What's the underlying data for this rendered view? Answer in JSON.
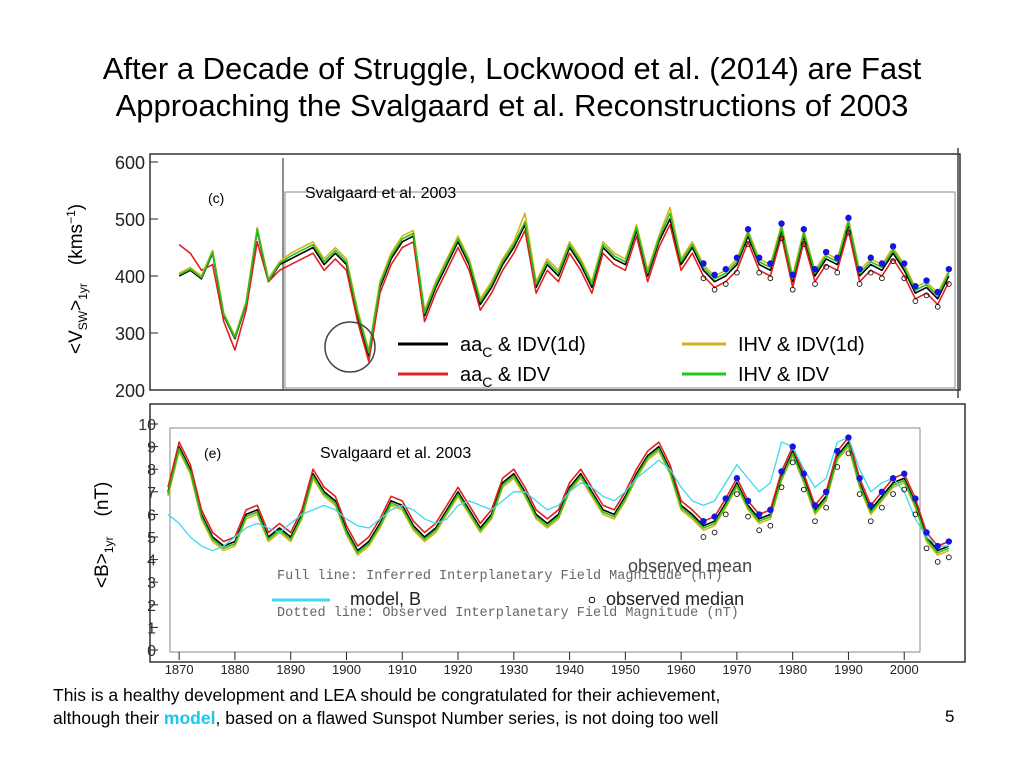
{
  "slide": {
    "title_line1": "After a Decade of Struggle, Lockwood et al. (2014) are Fast",
    "title_line2": "Approaching the Svalgaard et al. Reconstructions of 2003",
    "caption_part1": "This is a healthy development and LEA should be congratulated for their achievement,",
    "caption_part2": "although their ",
    "caption_highlight": "model",
    "caption_part3": ", based on a flawed Sunspot Number series, is not doing too well",
    "page_number": "5"
  },
  "colors": {
    "black": "#000000",
    "red": "#e02020",
    "yellow": "#d7b21c",
    "green": "#22c41e",
    "cyan": "#3fd8ee",
    "blue": "#1414e6",
    "accent": "#19c6ec"
  },
  "chart_data": [
    {
      "type": "line",
      "panel_label": "(c)",
      "ylabel_main": "(kms",
      "ylabel_sup": "−1",
      "ylabel_close": ")",
      "ylabel_var": "<V",
      "ylabel_sub": "SW",
      "ylabel_tail": ">",
      "ylabel_sub2": "1yr",
      "annotation": "Svalgaard et al. 2003",
      "ylim": [
        200,
        600
      ],
      "yticks": [
        "200",
        "300",
        "400",
        "500",
        "600"
      ],
      "legend": [
        {
          "name": "aa",
          "sub": "C",
          "suffix": " & IDV(1d)",
          "color": "#000000"
        },
        {
          "name": "aa",
          "sub": "C",
          "suffix": " & IDV",
          "color": "#e02020"
        },
        {
          "name": "IHV & IDV(1d)",
          "color": "#d7b21c"
        },
        {
          "name": "IHV & IDV",
          "color": "#22c41e"
        }
      ],
      "x": [
        1870,
        1872,
        1874,
        1876,
        1878,
        1880,
        1882,
        1884,
        1886,
        1888,
        1890,
        1892,
        1894,
        1896,
        1898,
        1900,
        1902,
        1904,
        1906,
        1908,
        1910,
        1912,
        1914,
        1916,
        1918,
        1920,
        1922,
        1924,
        1926,
        1928,
        1930,
        1932,
        1934,
        1936,
        1938,
        1940,
        1942,
        1944,
        1946,
        1948,
        1950,
        1952,
        1954,
        1956,
        1958,
        1960,
        1962,
        1964,
        1966,
        1968,
        1970,
        1972,
        1974,
        1976,
        1978,
        1980,
        1982,
        1984,
        1986,
        1988,
        1990,
        1992,
        1994,
        1996,
        1998,
        2000,
        2002,
        2004,
        2006,
        2008
      ],
      "series": [
        {
          "values": [
            400,
            410,
            395,
            440,
            330,
            290,
            350,
            480,
            390,
            420,
            430,
            440,
            450,
            420,
            440,
            420,
            330,
            260,
            380,
            430,
            460,
            470,
            330,
            380,
            420,
            460,
            420,
            350,
            380,
            420,
            450,
            490,
            380,
            420,
            400,
            450,
            420,
            380,
            450,
            430,
            420,
            480,
            400,
            460,
            500,
            420,
            450,
            410,
            390,
            400,
            420,
            470,
            420,
            410,
            480,
            390,
            470,
            400,
            430,
            420,
            490,
            400,
            420,
            410,
            440,
            410,
            370,
            380,
            360,
            400
          ]
        },
        {
          "values": [
            455,
            440,
            410,
            420,
            320,
            270,
            340,
            460,
            390,
            410,
            420,
            430,
            440,
            410,
            430,
            410,
            320,
            250,
            370,
            420,
            450,
            460,
            320,
            370,
            410,
            450,
            410,
            340,
            370,
            410,
            440,
            480,
            370,
            410,
            390,
            440,
            410,
            370,
            440,
            420,
            410,
            470,
            390,
            450,
            490,
            410,
            440,
            400,
            380,
            390,
            410,
            460,
            410,
            400,
            470,
            380,
            460,
            390,
            420,
            410,
            480,
            390,
            410,
            400,
            430,
            400,
            360,
            370,
            350,
            390
          ]
        },
        {
          "values": [
            405,
            415,
            400,
            445,
            335,
            295,
            355,
            485,
            395,
            425,
            440,
            450,
            460,
            430,
            450,
            430,
            340,
            270,
            390,
            440,
            470,
            480,
            340,
            390,
            430,
            470,
            430,
            360,
            390,
            430,
            460,
            510,
            390,
            430,
            410,
            460,
            430,
            390,
            460,
            440,
            430,
            490,
            410,
            470,
            520,
            430,
            460,
            420,
            400,
            410,
            430,
            480,
            430,
            420,
            490,
            400,
            480,
            410,
            440,
            430,
            500,
            410,
            430,
            420,
            450,
            420,
            380,
            390,
            370,
            410
          ]
        },
        {
          "values": [
            402,
            412,
            397,
            442,
            332,
            292,
            352,
            482,
            392,
            422,
            435,
            445,
            455,
            425,
            445,
            425,
            335,
            265,
            385,
            435,
            465,
            475,
            335,
            385,
            425,
            465,
            425,
            355,
            385,
            425,
            455,
            495,
            385,
            425,
            405,
            455,
            425,
            385,
            455,
            435,
            425,
            485,
            405,
            465,
            510,
            425,
            455,
            415,
            395,
            405,
            425,
            475,
            425,
            415,
            485,
            395,
            475,
            405,
            435,
            425,
            495,
            405,
            425,
            415,
            445,
            415,
            375,
            385,
            365,
            405
          ]
        }
      ]
    },
    {
      "type": "line",
      "panel_label": "(e)",
      "ylabel_main": "(nT)",
      "ylabel_var": "<B>",
      "ylabel_sub": "1yr",
      "annotation": "Svalgaard et al. 2003",
      "ylim": [
        0,
        10
      ],
      "yticks": [
        "0",
        "1",
        "2",
        "3",
        "4",
        "5",
        "6",
        "7",
        "8",
        "9",
        "10"
      ],
      "xticks": [
        "1870",
        "1880",
        "1890",
        "1900",
        "1910",
        "1920",
        "1930",
        "1940",
        "1950",
        "1960",
        "1970",
        "1980",
        "1990",
        "2000"
      ],
      "xlim": [
        1868,
        2010
      ],
      "note_full": "Full line: Inferred Interplanetary Field Magnitude (nT)",
      "note_dotted": "Dotted line: Observed Interplanetary Field Magnitude (nT)",
      "legend_model": "model, B",
      "legend_median": "observed median",
      "legend_mean": "observed mean",
      "x": [
        1868,
        1870,
        1872,
        1874,
        1876,
        1878,
        1880,
        1882,
        1884,
        1886,
        1888,
        1890,
        1892,
        1894,
        1896,
        1898,
        1900,
        1902,
        1904,
        1906,
        1908,
        1910,
        1912,
        1914,
        1916,
        1918,
        1920,
        1922,
        1924,
        1926,
        1928,
        1930,
        1932,
        1934,
        1936,
        1938,
        1940,
        1942,
        1944,
        1946,
        1948,
        1950,
        1952,
        1954,
        1956,
        1958,
        1960,
        1962,
        1964,
        1966,
        1968,
        1970,
        1972,
        1974,
        1976,
        1978,
        1980,
        1982,
        1984,
        1986,
        1988,
        1990,
        1992,
        1994,
        1996,
        1998,
        2000,
        2002,
        2004,
        2006,
        2008
      ],
      "series": [
        {
          "values": [
            7,
            9,
            8,
            6,
            5,
            4.6,
            4.8,
            6,
            6.2,
            5,
            5.4,
            5,
            6,
            7.8,
            7,
            6.6,
            5.3,
            4.4,
            4.8,
            5.6,
            6.6,
            6.4,
            5.5,
            5,
            5.4,
            6.2,
            7,
            6.2,
            5.4,
            6,
            7.4,
            7.8,
            7,
            6,
            5.6,
            6,
            7.2,
            7.8,
            7,
            6.2,
            6,
            6.8,
            7.8,
            8.6,
            9,
            8,
            6.4,
            6,
            5.5,
            5.7,
            6.5,
            7.4,
            6.4,
            5.8,
            6,
            7.7,
            8.8,
            7.6,
            6.2,
            6.8,
            8.6,
            9.2,
            7.4,
            6.2,
            6.8,
            7.4,
            7.6,
            6.5,
            5,
            4.4,
            4.6
          ]
        },
        {
          "values": [
            7.2,
            9.2,
            8.2,
            6.2,
            5.2,
            4.8,
            5,
            6.2,
            6.4,
            5.2,
            5.6,
            5.2,
            6.2,
            8,
            7.2,
            6.8,
            5.5,
            4.6,
            5,
            5.8,
            6.8,
            6.6,
            5.7,
            5.2,
            5.6,
            6.4,
            7.2,
            6.4,
            5.6,
            6.2,
            7.6,
            8,
            7.2,
            6.2,
            5.8,
            6.2,
            7.4,
            8,
            7.2,
            6.4,
            6.2,
            7,
            8,
            8.8,
            9.2,
            8.2,
            6.6,
            6.2,
            5.7,
            5.9,
            6.7,
            7.6,
            6.6,
            6,
            6.2,
            7.9,
            9,
            7.8,
            6.4,
            7,
            8.8,
            9.4,
            7.6,
            6.4,
            7,
            7.6,
            7.8,
            6.7,
            5.2,
            4.6,
            4.8
          ]
        },
        {
          "values": [
            6.8,
            8.8,
            7.8,
            5.8,
            4.8,
            4.4,
            4.6,
            5.8,
            6,
            4.8,
            5.2,
            4.8,
            5.8,
            7.6,
            6.8,
            6.4,
            5.1,
            4.2,
            4.6,
            5.4,
            6.4,
            6.2,
            5.3,
            4.8,
            5.2,
            6,
            6.8,
            6,
            5.2,
            5.8,
            7.2,
            7.6,
            6.8,
            5.8,
            5.4,
            5.8,
            7,
            7.6,
            6.8,
            6,
            5.8,
            6.6,
            7.6,
            8.4,
            8.8,
            7.8,
            6.2,
            5.8,
            5.3,
            5.5,
            6.3,
            7.2,
            6.2,
            5.6,
            5.8,
            7.5,
            8.6,
            7.4,
            6,
            6.6,
            8.4,
            9,
            7.2,
            6,
            6.6,
            7.2,
            7.4,
            6.3,
            4.8,
            4.2,
            4.4
          ]
        },
        {
          "values": [
            6.9,
            8.9,
            7.9,
            5.9,
            4.9,
            4.5,
            4.7,
            5.9,
            6.1,
            4.9,
            5.3,
            4.9,
            5.9,
            7.7,
            6.9,
            6.5,
            5.2,
            4.3,
            4.7,
            5.5,
            6.5,
            6.3,
            5.4,
            4.9,
            5.3,
            6.1,
            6.9,
            6.1,
            5.3,
            5.9,
            7.3,
            7.7,
            6.9,
            5.9,
            5.5,
            5.9,
            7.1,
            7.7,
            6.9,
            6.1,
            5.9,
            6.7,
            7.7,
            8.5,
            8.9,
            7.9,
            6.3,
            5.9,
            5.4,
            5.6,
            6.4,
            7.3,
            6.3,
            5.7,
            5.9,
            7.6,
            8.7,
            7.5,
            6.1,
            6.7,
            8.5,
            9.1,
            7.3,
            6.1,
            6.7,
            7.3,
            7.5,
            6.4,
            4.9,
            4.3,
            4.5
          ]
        },
        {
          "values": [
            6,
            5.6,
            5,
            4.6,
            4.4,
            4.6,
            5,
            5.4,
            5.6,
            5.4,
            5.2,
            5.6,
            6,
            6.2,
            6.4,
            6.2,
            5.8,
            5.5,
            5.4,
            5.8,
            6.2,
            6.4,
            6.2,
            5.8,
            5.6,
            5.8,
            6.4,
            6.6,
            6.4,
            6.2,
            6.6,
            7,
            7,
            6.6,
            6.2,
            6.4,
            7,
            7.4,
            7.2,
            6.8,
            6.6,
            7,
            7.6,
            8,
            8.4,
            8,
            7.2,
            6.6,
            6.4,
            6.6,
            7.4,
            8.2,
            7.6,
            7,
            7.4,
            9.2,
            9,
            8,
            7.2,
            7.6,
            9.2,
            9.4,
            8,
            7,
            7.4,
            7.6,
            7,
            5.8,
            5,
            4.6,
            4.6
          ]
        }
      ]
    }
  ]
}
